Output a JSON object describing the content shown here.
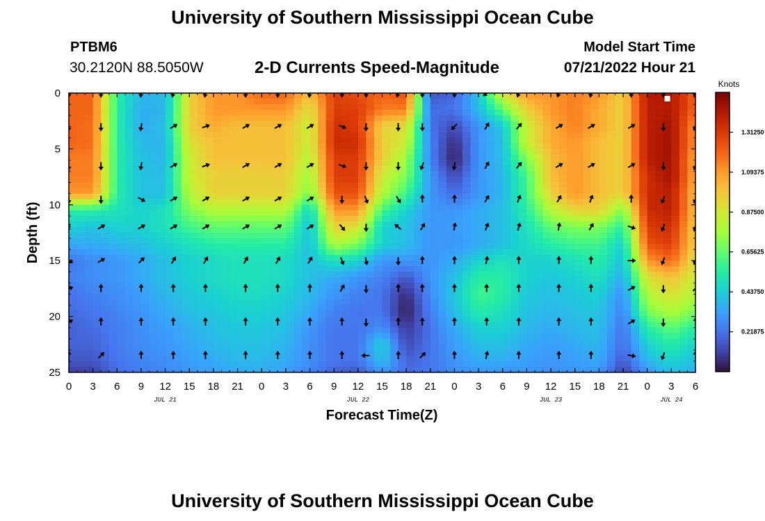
{
  "header": {
    "title": "University of Southern Mississippi Ocean Cube",
    "station_id": "PTBM6",
    "coords": "30.2120N  88.5050W",
    "subtitle": "2-D Currents Speed-Magnitude",
    "model_start_label": "Model Start Time",
    "model_start_time": "07/21/2022 Hour 21"
  },
  "footer": {
    "title": "University of Southern Mississippi Ocean Cube"
  },
  "colors": {
    "arrow": "#000000",
    "frame": "#000000",
    "marker": "#ffffff"
  },
  "chart_data": {
    "type": "heatmap",
    "title": "2-D Currents Speed-Magnitude",
    "xlabel": "Forecast Time(Z)",
    "ylabel": "Depth (ft)",
    "x_unit": "hours since Jul 21 00Z",
    "xlim": [
      0,
      78
    ],
    "ylim": [
      0,
      25
    ],
    "y_inverted": true,
    "x_ticks": [
      {
        "h": 0,
        "label": "0"
      },
      {
        "h": 3,
        "label": "3"
      },
      {
        "h": 6,
        "label": "6"
      },
      {
        "h": 9,
        "label": "9"
      },
      {
        "h": 12,
        "label": "12"
      },
      {
        "h": 15,
        "label": "15"
      },
      {
        "h": 18,
        "label": "18"
      },
      {
        "h": 21,
        "label": "21"
      },
      {
        "h": 24,
        "label": "0"
      },
      {
        "h": 27,
        "label": "3"
      },
      {
        "h": 30,
        "label": "6"
      },
      {
        "h": 33,
        "label": "9"
      },
      {
        "h": 36,
        "label": "12"
      },
      {
        "h": 39,
        "label": "15"
      },
      {
        "h": 42,
        "label": "18"
      },
      {
        "h": 45,
        "label": "21"
      },
      {
        "h": 48,
        "label": "0"
      },
      {
        "h": 51,
        "label": "3"
      },
      {
        "h": 54,
        "label": "6"
      },
      {
        "h": 57,
        "label": "9"
      },
      {
        "h": 60,
        "label": "12"
      },
      {
        "h": 63,
        "label": "15"
      },
      {
        "h": 66,
        "label": "18"
      },
      {
        "h": 69,
        "label": "21"
      },
      {
        "h": 72,
        "label": "0"
      },
      {
        "h": 75,
        "label": "3"
      },
      {
        "h": 78,
        "label": "6"
      }
    ],
    "date_labels": [
      {
        "h": 12,
        "label": "JUL 21"
      },
      {
        "h": 36,
        "label": "JUL 22"
      },
      {
        "h": 60,
        "label": "JUL 23"
      },
      {
        "h": 75,
        "label": "JUL 24"
      }
    ],
    "y_ticks": [
      0,
      5,
      10,
      15,
      20,
      25
    ],
    "colorbar": {
      "title": "Knots",
      "range": [
        0,
        1.53125
      ],
      "tick_values": [
        0.21875,
        0.4375,
        0.65625,
        0.875,
        1.09375,
        1.3125
      ],
      "tick_labels": [
        "0.21875",
        "0.43750",
        "0.65625",
        "0.87500",
        "1.09375",
        "1.31250"
      ],
      "colormap": [
        "#30123b",
        "#4145ab",
        "#4675ed",
        "#39a2fc",
        "#1bcfd4",
        "#24eca6",
        "#61fc6c",
        "#a4fc3b",
        "#d1e834",
        "#f3c63a",
        "#fe9b2d",
        "#f36315",
        "#d93806",
        "#b11901",
        "#7a0403"
      ]
    },
    "time_hours": [
      0,
      3,
      6,
      9,
      12,
      15,
      18,
      21,
      24,
      27,
      30,
      33,
      36,
      39,
      42,
      45,
      48,
      51,
      54,
      57,
      60,
      63,
      66,
      69,
      72,
      75,
      78
    ],
    "depths_ft": [
      0,
      1.5,
      3,
      4.5,
      6,
      7.5,
      9,
      10.5,
      12,
      13.5,
      15,
      16.5,
      18,
      19.5,
      21,
      22.5,
      24,
      25
    ],
    "speed_knots": [
      [
        1.2,
        1.2,
        0.55,
        0.38,
        0.38,
        0.95,
        1.1,
        1.1,
        1.2,
        1.2,
        1.0,
        1.3,
        1.25,
        1.2,
        1.25,
        0.15,
        0.18,
        0.42,
        0.9,
        1.1,
        1.1,
        1.15,
        1.1,
        0.95,
        1.42,
        1.42,
        1.2
      ],
      [
        1.2,
        1.2,
        0.55,
        0.35,
        0.38,
        0.95,
        1.1,
        1.1,
        1.1,
        1.1,
        0.9,
        1.3,
        1.3,
        1.15,
        1.15,
        0.2,
        0.22,
        0.38,
        0.65,
        0.95,
        1.1,
        1.15,
        1.05,
        0.95,
        1.4,
        1.42,
        1.2
      ],
      [
        1.2,
        1.18,
        0.55,
        0.35,
        0.4,
        0.95,
        1.05,
        1.0,
        1.0,
        1.0,
        0.85,
        1.35,
        1.3,
        0.95,
        0.9,
        0.22,
        0.12,
        0.3,
        0.42,
        0.85,
        1.05,
        1.15,
        1.05,
        0.95,
        1.4,
        1.45,
        1.1
      ],
      [
        1.2,
        1.18,
        0.55,
        0.38,
        0.38,
        0.9,
        1.0,
        1.0,
        1.0,
        1.0,
        0.85,
        1.35,
        1.35,
        0.95,
        0.85,
        0.25,
        0.05,
        0.3,
        0.4,
        0.85,
        1.05,
        1.1,
        1.0,
        0.95,
        1.4,
        1.45,
        1.1
      ],
      [
        1.15,
        1.15,
        0.55,
        0.4,
        0.38,
        0.85,
        1.0,
        1.0,
        1.0,
        1.0,
        0.8,
        1.3,
        1.3,
        0.95,
        0.75,
        0.25,
        0.03,
        0.3,
        0.4,
        0.7,
        1.0,
        1.1,
        1.0,
        0.95,
        1.4,
        1.45,
        1.05
      ],
      [
        1.15,
        1.15,
        0.55,
        0.4,
        0.4,
        0.85,
        0.95,
        0.95,
        0.95,
        0.95,
        0.75,
        1.3,
        1.3,
        0.85,
        0.7,
        0.3,
        0.12,
        0.3,
        0.38,
        0.6,
        1.0,
        1.1,
        1.0,
        0.95,
        1.35,
        1.45,
        1.05
      ],
      [
        1.1,
        1.1,
        0.55,
        0.4,
        0.4,
        0.8,
        0.95,
        0.95,
        0.95,
        0.95,
        0.7,
        1.25,
        1.25,
        0.8,
        0.6,
        0.3,
        0.2,
        0.3,
        0.38,
        0.6,
        0.95,
        1.1,
        1.0,
        0.95,
        1.35,
        1.4,
        1.0
      ],
      [
        0.55,
        0.55,
        0.5,
        0.45,
        0.5,
        0.7,
        0.8,
        0.8,
        0.8,
        0.8,
        0.45,
        1.1,
        1.1,
        0.6,
        0.45,
        0.3,
        0.3,
        0.35,
        0.4,
        0.55,
        0.8,
        0.95,
        0.95,
        0.7,
        1.35,
        1.4,
        1.0
      ],
      [
        0.45,
        0.4,
        0.45,
        0.45,
        0.5,
        0.6,
        0.65,
        0.65,
        0.65,
        0.65,
        0.4,
        0.95,
        0.9,
        0.45,
        0.4,
        0.3,
        0.32,
        0.35,
        0.4,
        0.5,
        0.65,
        0.7,
        0.7,
        0.55,
        1.3,
        1.35,
        0.95
      ],
      [
        0.35,
        0.35,
        0.38,
        0.4,
        0.45,
        0.5,
        0.55,
        0.55,
        0.55,
        0.55,
        0.4,
        0.8,
        0.7,
        0.45,
        0.4,
        0.3,
        0.3,
        0.35,
        0.4,
        0.48,
        0.55,
        0.6,
        0.6,
        0.45,
        1.25,
        1.3,
        0.95
      ],
      [
        0.22,
        0.28,
        0.3,
        0.35,
        0.4,
        0.45,
        0.48,
        0.5,
        0.5,
        0.48,
        0.4,
        0.5,
        0.45,
        0.3,
        0.3,
        0.3,
        0.35,
        0.45,
        0.5,
        0.45,
        0.45,
        0.5,
        0.55,
        0.4,
        1.1,
        1.2,
        0.9
      ],
      [
        0.25,
        0.28,
        0.3,
        0.35,
        0.4,
        0.45,
        0.48,
        0.5,
        0.5,
        0.48,
        0.4,
        0.35,
        0.3,
        0.25,
        0.15,
        0.3,
        0.4,
        0.55,
        0.55,
        0.45,
        0.42,
        0.45,
        0.5,
        0.35,
        0.9,
        1.0,
        0.85
      ],
      [
        0.22,
        0.25,
        0.28,
        0.32,
        0.38,
        0.42,
        0.45,
        0.48,
        0.48,
        0.45,
        0.38,
        0.3,
        0.25,
        0.22,
        0.05,
        0.28,
        0.42,
        0.6,
        0.55,
        0.42,
        0.4,
        0.42,
        0.45,
        0.28,
        0.8,
        0.9,
        0.8
      ],
      [
        0.2,
        0.22,
        0.26,
        0.3,
        0.35,
        0.4,
        0.42,
        0.45,
        0.45,
        0.42,
        0.35,
        0.25,
        0.22,
        0.22,
        0.02,
        0.25,
        0.4,
        0.55,
        0.5,
        0.4,
        0.38,
        0.4,
        0.42,
        0.25,
        0.7,
        0.8,
        0.7
      ],
      [
        0.18,
        0.2,
        0.24,
        0.28,
        0.32,
        0.36,
        0.4,
        0.42,
        0.42,
        0.4,
        0.3,
        0.22,
        0.22,
        0.28,
        0.08,
        0.22,
        0.35,
        0.45,
        0.45,
        0.38,
        0.35,
        0.38,
        0.4,
        0.22,
        0.55,
        0.65,
        0.55
      ],
      [
        0.18,
        0.18,
        0.24,
        0.28,
        0.3,
        0.34,
        0.38,
        0.4,
        0.4,
        0.38,
        0.28,
        0.22,
        0.22,
        0.45,
        0.12,
        0.22,
        0.32,
        0.4,
        0.4,
        0.35,
        0.32,
        0.35,
        0.38,
        0.2,
        0.45,
        0.55,
        0.45
      ],
      [
        0.15,
        0.15,
        0.22,
        0.26,
        0.28,
        0.32,
        0.35,
        0.38,
        0.38,
        0.35,
        0.28,
        0.22,
        0.22,
        0.4,
        0.18,
        0.22,
        0.3,
        0.35,
        0.35,
        0.32,
        0.3,
        0.32,
        0.35,
        0.15,
        0.38,
        0.45,
        0.4
      ],
      [
        0.1,
        0.1,
        0.2,
        0.24,
        0.26,
        0.3,
        0.32,
        0.35,
        0.35,
        0.32,
        0.25,
        0.18,
        0.15,
        0.3,
        0.2,
        0.22,
        0.28,
        0.3,
        0.3,
        0.3,
        0.28,
        0.3,
        0.3,
        0.1,
        0.3,
        0.4,
        0.35
      ]
    ],
    "arrow_depths_ft": [
      0,
      3,
      6.5,
      9.5,
      12,
      15,
      17.5,
      20.5,
      23.5
    ],
    "arrow_times_h": [
      0,
      4,
      9,
      13,
      17,
      22,
      26,
      30,
      34,
      37,
      41,
      44,
      48,
      52,
      56,
      61,
      65,
      70,
      74,
      78
    ],
    "arrow_angles_deg_cw_from_north": [
      [
        180,
        180,
        190,
        195,
        190,
        180,
        180,
        190,
        180,
        180,
        200,
        180,
        180,
        230,
        200,
        200,
        190,
        180,
        180,
        200
      ],
      [
        180,
        180,
        190,
        60,
        70,
        60,
        60,
        60,
        110,
        180,
        180,
        180,
        225,
        30,
        40,
        60,
        60,
        60,
        180,
        200
      ],
      [
        180,
        180,
        190,
        60,
        70,
        60,
        60,
        60,
        110,
        180,
        180,
        200,
        190,
        30,
        40,
        60,
        60,
        60,
        180,
        200
      ],
      [
        180,
        180,
        120,
        60,
        60,
        60,
        60,
        60,
        180,
        160,
        150,
        0,
        0,
        30,
        20,
        30,
        20,
        0,
        200,
        200
      ],
      [
        200,
        60,
        60,
        60,
        60,
        60,
        60,
        60,
        140,
        180,
        310,
        30,
        10,
        20,
        15,
        10,
        30,
        110,
        200,
        200
      ],
      [
        120,
        60,
        45,
        30,
        30,
        30,
        30,
        30,
        160,
        170,
        180,
        0,
        0,
        10,
        0,
        0,
        0,
        90,
        200,
        200
      ],
      [
        70,
        0,
        0,
        0,
        0,
        0,
        0,
        0,
        30,
        180,
        0,
        0,
        0,
        0,
        0,
        0,
        0,
        60,
        180,
        45
      ],
      [
        60,
        0,
        0,
        0,
        0,
        0,
        0,
        0,
        0,
        180,
        0,
        0,
        0,
        0,
        0,
        0,
        0,
        60,
        180,
        0
      ],
      [
        0,
        45,
        0,
        0,
        0,
        0,
        0,
        0,
        0,
        270,
        0,
        45,
        0,
        10,
        0,
        0,
        0,
        100,
        200,
        0
      ]
    ],
    "marker": {
      "time_h": 74.5,
      "depth_ft": 0.5
    }
  }
}
